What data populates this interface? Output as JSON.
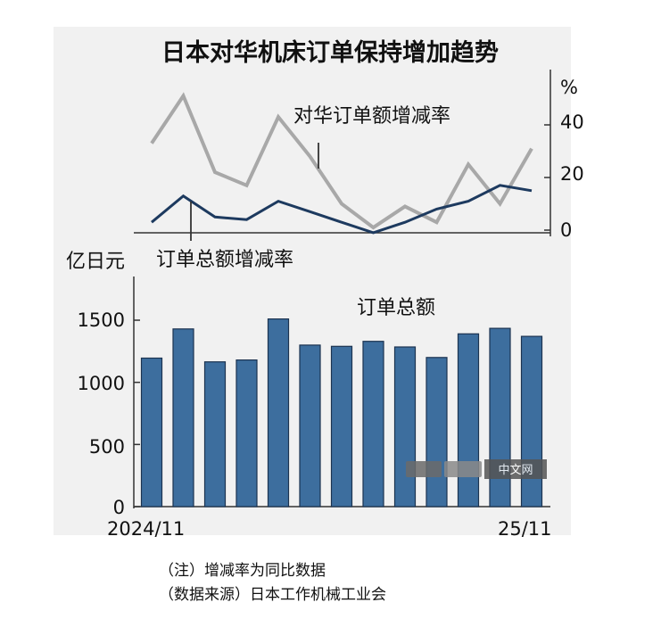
{
  "title": "日本对华机床订单保持增加趋势",
  "top_panel": {
    "unit": "%",
    "yticks": [
      "40",
      "20",
      "0"
    ],
    "label_china": "对华订单额增减率",
    "label_total": "订单总额增减率"
  },
  "bottom_panel": {
    "unit": "亿日元",
    "yticks": [
      "1500",
      "1000",
      "500",
      "0"
    ],
    "series_label": "订单总额",
    "x_start": "2024/11",
    "x_end": "25/11"
  },
  "notes": {
    "note1": "（注）增减率为同比数据",
    "note2": "（数据来源）日本工作机械工业会"
  },
  "watermark": "中文网",
  "colors": {
    "bar": "#3d6e9e",
    "bar_stroke": "#1c3350",
    "china_line": "#a8a8a8",
    "total_line": "#1d3a5f",
    "panel_bg": "#f1f1f1"
  },
  "chart_data": [
    {
      "type": "line",
      "title": "",
      "ylabel": "%",
      "ylim": [
        0,
        50
      ],
      "x": [
        "2024/11",
        "2024/12",
        "2025/01",
        "2025/02",
        "2025/03",
        "2025/04",
        "2025/05",
        "2025/06",
        "2025/07",
        "2025/08",
        "2025/09",
        "2025/10",
        "2025/11"
      ],
      "series": [
        {
          "name": "对华订单额增减率",
          "values": [
            33,
            51,
            22,
            17,
            43,
            28,
            10,
            1,
            9,
            3,
            25,
            10,
            31
          ]
        },
        {
          "name": "订单总额增减率",
          "values": [
            3,
            13,
            5,
            4,
            11,
            7,
            3,
            -1,
            3,
            8,
            11,
            17,
            15
          ]
        }
      ]
    },
    {
      "type": "bar",
      "title": "",
      "ylabel": "亿日元",
      "ylim": [
        0,
        1800
      ],
      "categories": [
        "2024/11",
        "2024/12",
        "2025/01",
        "2025/02",
        "2025/03",
        "2025/04",
        "2025/05",
        "2025/06",
        "2025/07",
        "2025/08",
        "2025/09",
        "2025/10",
        "2025/11"
      ],
      "series": [
        {
          "name": "订单总额",
          "values": [
            1195,
            1430,
            1165,
            1180,
            1510,
            1300,
            1290,
            1330,
            1285,
            1200,
            1390,
            1435,
            1370
          ]
        }
      ]
    }
  ]
}
